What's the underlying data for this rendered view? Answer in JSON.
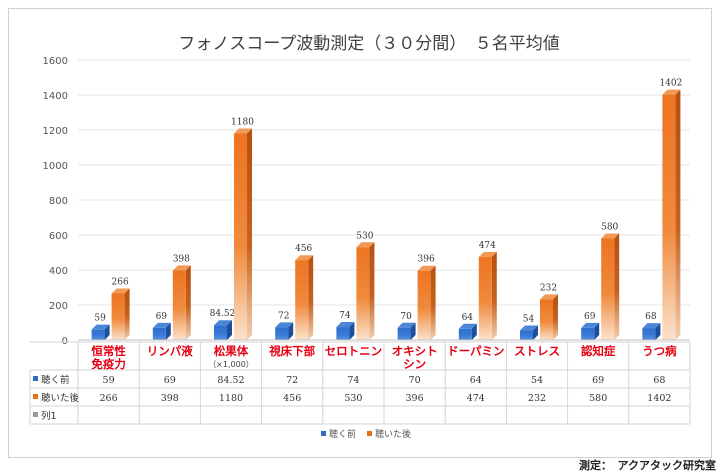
{
  "chart_data": {
    "type": "bar",
    "title": "フォノスコープ波動測定（３０分間）　５名平均値",
    "categories": [
      {
        "label": [
          "恒常性",
          "免疫力"
        ],
        "note": ""
      },
      {
        "label": [
          "リンパ液"
        ],
        "note": ""
      },
      {
        "label": [
          "松果体"
        ],
        "note": "（×1,000）"
      },
      {
        "label": [
          "視床下部"
        ],
        "note": ""
      },
      {
        "label": [
          "セロトニン"
        ],
        "note": ""
      },
      {
        "label": [
          "オキシト",
          "シン"
        ],
        "note": ""
      },
      {
        "label": [
          "ドーパミン"
        ],
        "note": ""
      },
      {
        "label": [
          "ストレス"
        ],
        "note": ""
      },
      {
        "label": [
          "認知症"
        ],
        "note": ""
      },
      {
        "label": [
          "うつ病"
        ],
        "note": ""
      }
    ],
    "series": [
      {
        "name": "聴く前",
        "color": "#2e6bc4",
        "values": [
          59,
          69,
          84.52,
          72,
          74,
          70,
          64,
          54,
          69,
          68
        ],
        "value_labels": [
          "59",
          "69",
          "84.52",
          "72",
          "74",
          "70",
          "64",
          "54",
          "69",
          "68"
        ]
      },
      {
        "name": "聴いた後",
        "color": "#e8701a",
        "values": [
          266,
          398,
          1180,
          456,
          530,
          396,
          474,
          232,
          580,
          1402
        ],
        "value_labels": [
          "266",
          "398",
          "1180",
          "456",
          "530",
          "396",
          "474",
          "232",
          "580",
          "1402"
        ]
      }
    ],
    "table_extra_row": {
      "name": "列1",
      "values": [
        "",
        "",
        "",
        "",
        "",
        "",
        "",
        "",
        "",
        ""
      ]
    },
    "y_ticks": [
      0,
      200,
      400,
      600,
      800,
      1000,
      1200,
      1400,
      1600
    ],
    "ylim": [
      0,
      1600
    ],
    "grid": true,
    "legend_position": "bottom",
    "category_label_color": "#e60012"
  },
  "credit": "測定：　アクアタック研究室"
}
